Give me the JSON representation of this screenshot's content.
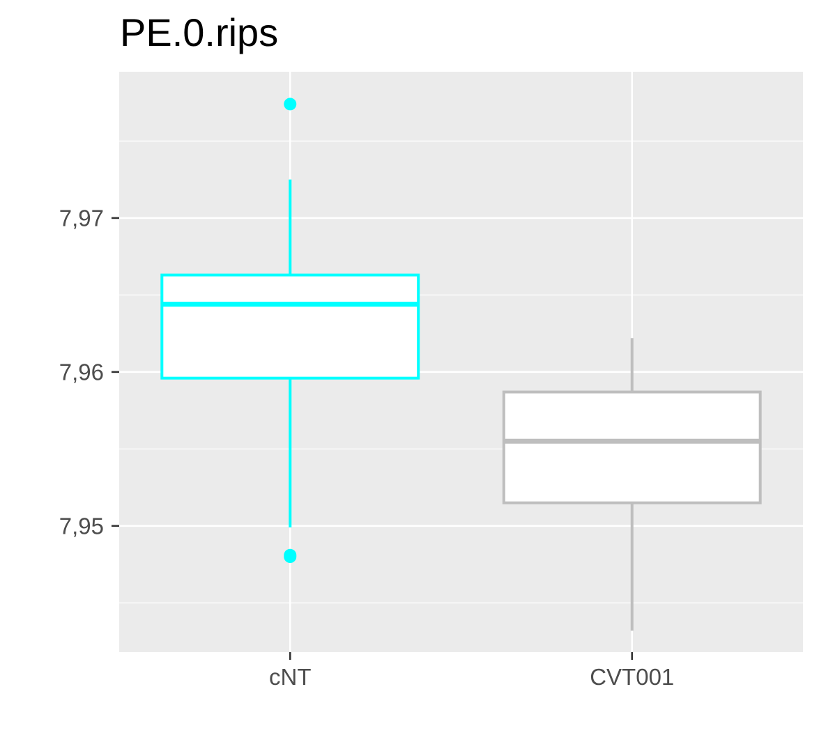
{
  "chart_data": {
    "type": "box",
    "title": "PE.0.rips",
    "xlabel": "",
    "ylabel": "",
    "categories": [
      "cNT",
      "CVT001"
    ],
    "ylim": [
      7.9418,
      7.9795
    ],
    "y_ticks": [
      7.95,
      7.96,
      7.97
    ],
    "y_tick_labels": [
      "7,95",
      "7,96",
      "7,97"
    ],
    "grid": true,
    "legend": "none",
    "boxes": [
      {
        "category": "cNT",
        "color": "#00FFFF",
        "whisker_low": 7.9499,
        "q1": 7.9596,
        "median": 7.9644,
        "q3": 7.9663,
        "whisker_high": 7.9725,
        "outliers": [
          7.9774,
          7.9481,
          7.948
        ]
      },
      {
        "category": "CVT001",
        "color": "#BEBEBE",
        "whisker_low": 7.9432,
        "q1": 7.9515,
        "median": 7.9555,
        "q3": 7.9587,
        "whisker_high": 7.9622,
        "outliers": []
      }
    ],
    "colors": {
      "panel_background": "#EBEBEB",
      "grid_line": "#FFFFFF",
      "tick_text": "#4D4D4D",
      "tick_mark": "#333333"
    }
  }
}
